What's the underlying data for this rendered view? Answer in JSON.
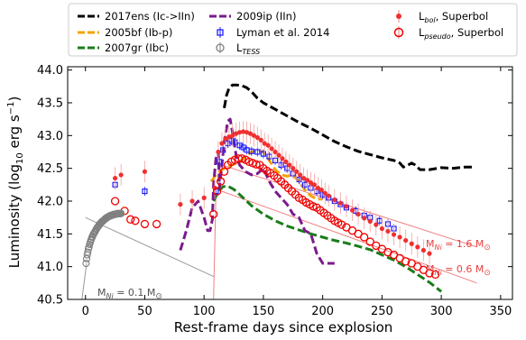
{
  "chart_data": {
    "type": "line",
    "title": "",
    "xlabel": "Rest-frame days since explosion",
    "ylabel": "Luminosity (log",
    "ylabel_sub": "10",
    "ylabel_unit": " erg s",
    "ylabel_sup": "−1",
    "ylabel_close": ")",
    "xlim": [
      -15,
      360
    ],
    "ylim": [
      40.5,
      44.05
    ],
    "xticks": [
      0,
      50,
      100,
      150,
      200,
      250,
      300,
      350
    ],
    "yticks": [
      40.5,
      41.0,
      41.5,
      42.0,
      42.5,
      43.0,
      43.5,
      44.0
    ],
    "ytick_labels": [
      "40.5",
      "41.0",
      "41.5",
      "42.0",
      "42.5",
      "43.0",
      "43.5",
      "44.0"
    ],
    "legend_position": "top, outside plot, 3 columns",
    "series": [
      {
        "name": "2017ens (Ic->IIn)",
        "label_main": "2017ens (Ic->IIn)",
        "style": "dashed",
        "color": "#000000",
        "x": [
          117,
          119,
          121,
          124,
          128,
          132,
          136,
          140,
          145,
          150,
          160,
          170,
          180,
          190,
          200,
          210,
          220,
          230,
          240,
          250,
          260,
          265,
          268,
          272,
          275,
          278,
          282,
          290,
          300,
          310,
          320,
          327
        ],
        "y": [
          43.42,
          43.62,
          43.72,
          43.77,
          43.77,
          43.76,
          43.73,
          43.67,
          43.57,
          43.5,
          43.4,
          43.3,
          43.2,
          43.11,
          43.01,
          42.91,
          42.83,
          42.76,
          42.71,
          42.66,
          42.62,
          42.58,
          42.52,
          42.55,
          42.58,
          42.55,
          42.48,
          42.48,
          42.51,
          42.5,
          42.52,
          42.52
        ]
      },
      {
        "name": "2005bf (Ib-p)",
        "label_main": "2005bf (Ib-p)",
        "style": "dashed",
        "color": "#f2a400",
        "x": [
          106,
          110,
          115,
          120,
          125,
          130,
          135,
          140,
          145,
          150,
          155,
          160,
          165,
          170,
          175,
          180,
          185,
          190,
          195,
          200
        ],
        "y": [
          42.3,
          42.4,
          42.48,
          42.52,
          42.56,
          42.6,
          42.68,
          42.75,
          42.78,
          42.75,
          42.62,
          42.48,
          42.4,
          42.38,
          42.4,
          42.3,
          42.17,
          42.08,
          42.03,
          42.03
        ]
      },
      {
        "name": "2007gr (Ibc)",
        "label_main": "2007gr (Ibc)",
        "style": "dashed",
        "color": "#1a7d1a",
        "x": [
          108,
          112,
          116,
          120,
          125,
          130,
          140,
          150,
          160,
          170,
          180,
          190,
          200,
          210,
          220,
          230,
          240,
          250,
          260,
          270,
          280,
          290,
          300
        ],
        "y": [
          42.0,
          42.15,
          42.22,
          42.23,
          42.18,
          42.1,
          41.93,
          41.8,
          41.7,
          41.62,
          41.56,
          41.5,
          41.45,
          41.4,
          41.36,
          41.31,
          41.26,
          41.18,
          41.1,
          41.0,
          40.88,
          40.76,
          40.62
        ]
      },
      {
        "name": "2009ip (IIn)",
        "label_main": "2009ip (IIn)",
        "style": "dashed",
        "color": "#7b1a8c",
        "x": [
          80,
          85,
          90,
          95,
          100,
          103,
          105,
          107,
          108,
          110,
          112,
          113,
          115,
          117,
          118,
          120,
          122,
          124,
          127,
          130,
          135,
          140,
          145,
          150,
          155,
          160,
          165,
          170,
          175,
          180,
          185,
          190,
          195,
          200,
          205,
          210
        ],
        "y": [
          41.25,
          41.55,
          41.9,
          42.0,
          41.75,
          41.55,
          41.55,
          41.72,
          42.25,
          42.65,
          42.75,
          42.2,
          42.55,
          42.9,
          43.02,
          43.22,
          43.25,
          43.05,
          42.7,
          42.55,
          42.45,
          42.4,
          42.42,
          42.5,
          42.3,
          42.15,
          42.05,
          41.95,
          41.8,
          41.75,
          41.55,
          41.5,
          41.2,
          41.05,
          41.05,
          41.05
        ]
      },
      {
        "name": "Lyman et al. 2014",
        "label_main": "Lyman et al. 2014",
        "style": "square-marker",
        "color": "#1f1fff",
        "x": [
          25,
          50,
          110,
          113,
          116,
          120,
          123,
          126,
          130,
          133,
          136,
          140,
          145,
          150,
          155,
          160,
          165,
          170,
          175,
          180,
          185,
          190,
          195,
          200,
          205,
          210,
          215,
          220,
          228,
          235,
          240,
          248,
          255,
          260
        ],
        "y": [
          42.25,
          42.15,
          42.15,
          42.6,
          42.78,
          42.88,
          42.92,
          42.9,
          42.85,
          42.82,
          42.78,
          42.76,
          42.75,
          42.72,
          42.68,
          42.62,
          42.55,
          42.5,
          42.42,
          42.33,
          42.25,
          42.2,
          42.15,
          42.1,
          42.05,
          42.0,
          41.95,
          41.9,
          41.85,
          41.78,
          41.75,
          41.7,
          41.65,
          41.58
        ]
      },
      {
        "name": "L_bol, Superbol",
        "label_main": "L",
        "label_sub": "bol",
        "label_rest": ", Superbol",
        "style": "filled-circle",
        "color": "#f03030",
        "x": [
          25,
          30,
          50,
          80,
          90,
          100,
          109,
          112,
          115,
          118,
          121,
          124,
          127,
          130,
          133,
          136,
          139,
          142,
          145,
          148,
          151,
          154,
          157,
          160,
          163,
          166,
          169,
          172,
          175,
          178,
          181,
          184,
          187,
          190,
          193,
          196,
          199,
          202,
          205,
          210,
          215,
          220,
          225,
          230,
          235,
          240,
          245,
          250,
          255,
          260,
          265,
          270,
          275,
          280,
          285,
          290
        ],
        "y": [
          42.35,
          42.4,
          42.45,
          41.95,
          42.0,
          42.05,
          42.2,
          42.75,
          42.88,
          42.95,
          42.98,
          43.0,
          43.03,
          43.05,
          43.06,
          43.05,
          43.03,
          43.0,
          42.97,
          42.93,
          42.88,
          42.85,
          42.8,
          42.75,
          42.7,
          42.65,
          42.6,
          42.55,
          42.5,
          42.45,
          42.4,
          42.35,
          42.32,
          42.28,
          42.25,
          42.2,
          42.17,
          42.12,
          42.08,
          42.02,
          41.97,
          41.92,
          41.86,
          41.8,
          41.74,
          41.69,
          41.64,
          41.58,
          41.54,
          41.49,
          41.45,
          41.4,
          41.35,
          41.3,
          41.25,
          41.2
        ]
      },
      {
        "name": "L_pseudo, Superbol",
        "label_main": "L",
        "label_sub": "pseudo",
        "label_rest": ", Superbol",
        "style": "open-circle",
        "color": "#f00000",
        "x": [
          25,
          33,
          38,
          42,
          50,
          60,
          108,
          111,
          114,
          117,
          120,
          123,
          126,
          129,
          132,
          135,
          138,
          141,
          144,
          147,
          150,
          153,
          156,
          159,
          162,
          165,
          168,
          171,
          174,
          177,
          180,
          183,
          186,
          189,
          192,
          195,
          198,
          201,
          204,
          207,
          210,
          213,
          216,
          220,
          225,
          230,
          235,
          240,
          245,
          250,
          255,
          260,
          265,
          270,
          275,
          280,
          285,
          290,
          295
        ],
        "y": [
          42.0,
          41.85,
          41.72,
          41.7,
          41.65,
          41.65,
          41.8,
          42.15,
          42.3,
          42.45,
          42.55,
          42.6,
          42.63,
          42.65,
          42.65,
          42.63,
          42.6,
          42.58,
          42.56,
          42.55,
          42.5,
          42.46,
          42.43,
          42.39,
          42.35,
          42.3,
          42.25,
          42.2,
          42.15,
          42.1,
          42.05,
          42.02,
          41.98,
          41.95,
          41.92,
          41.9,
          41.86,
          41.82,
          41.78,
          41.74,
          41.7,
          41.67,
          41.64,
          41.6,
          41.55,
          41.5,
          41.45,
          41.38,
          41.32,
          41.27,
          41.22,
          41.18,
          41.13,
          41.08,
          41.05,
          41.0,
          40.95,
          40.9,
          40.88
        ]
      },
      {
        "name": "L_TESS",
        "label_main": "L",
        "label_sub": "TESS",
        "label_rest": "",
        "style": "open-circle-grey",
        "color": "#808080",
        "x": [
          0.5,
          1,
          1.5,
          2,
          2.5,
          3,
          3.5,
          4,
          4.5,
          5,
          5.5,
          6,
          6.5,
          7,
          7.5,
          8,
          8.5,
          9,
          9.5,
          10,
          10.5,
          11,
          11.5,
          12,
          12.5,
          13,
          13.5,
          14,
          14.5,
          15,
          15.5,
          16,
          16.5,
          17,
          17.5,
          18,
          18.5,
          19,
          19.5,
          20,
          20.5,
          21,
          21.5,
          22,
          22.5,
          23,
          23.5,
          24,
          24.5,
          25,
          25.5,
          26,
          26.5,
          27,
          27.5,
          28,
          28.5,
          29,
          29.5,
          30
        ],
        "y": [
          41.05,
          41.12,
          41.18,
          41.22,
          41.27,
          41.3,
          41.34,
          41.37,
          41.4,
          41.42,
          41.45,
          41.46,
          41.49,
          41.5,
          41.52,
          41.53,
          41.55,
          41.57,
          41.58,
          41.6,
          41.61,
          41.62,
          41.64,
          41.64,
          41.66,
          41.67,
          41.68,
          41.69,
          41.69,
          41.7,
          41.71,
          41.72,
          41.73,
          41.73,
          41.74,
          41.75,
          41.75,
          41.76,
          41.76,
          41.77,
          41.77,
          41.78,
          41.78,
          41.78,
          41.79,
          41.79,
          41.79,
          41.8,
          41.8,
          41.8,
          41.8,
          41.8,
          41.81,
          41.81,
          41.81,
          41.81,
          41.81,
          41.81,
          41.81,
          41.81
        ]
      }
    ],
    "annotations": [
      {
        "text_pre": "M",
        "text_sub": "Ni",
        "text_post": " = 0.1 M",
        "text_sym": "⊙",
        "color": "#505050"
      },
      {
        "text_pre": "M",
        "text_sub": "Ni",
        "text_post": " = 1.6 M",
        "text_sym": "⊙",
        "color": "#e84040"
      },
      {
        "text_pre": "M",
        "text_sub": "Ni",
        "text_post": " = 0.6 M",
        "text_sym": "⊙",
        "color": "#e84040"
      }
    ],
    "nickel_lines": [
      {
        "name": "M_Ni = 0.1",
        "color": "#999999",
        "x": [
          0,
          108
        ],
        "y": [
          41.75,
          40.85
        ]
      },
      {
        "name": "M_Ni = 1.6",
        "color": "#f08080",
        "x": [
          115,
          330
        ],
        "y": [
          42.55,
          41.3
        ]
      },
      {
        "name": "M_Ni = 0.6",
        "color": "#f08080",
        "x": [
          115,
          330
        ],
        "y": [
          42.15,
          40.75
        ]
      },
      {
        "name": "TESS rise",
        "color": "#999999",
        "x": [
          -3,
          1
        ],
        "y": [
          40.5,
          41.05
        ]
      },
      {
        "name": "second rise",
        "color": "#f08080",
        "x": [
          108,
          110
        ],
        "y": [
          40.5,
          42.1
        ]
      }
    ]
  }
}
